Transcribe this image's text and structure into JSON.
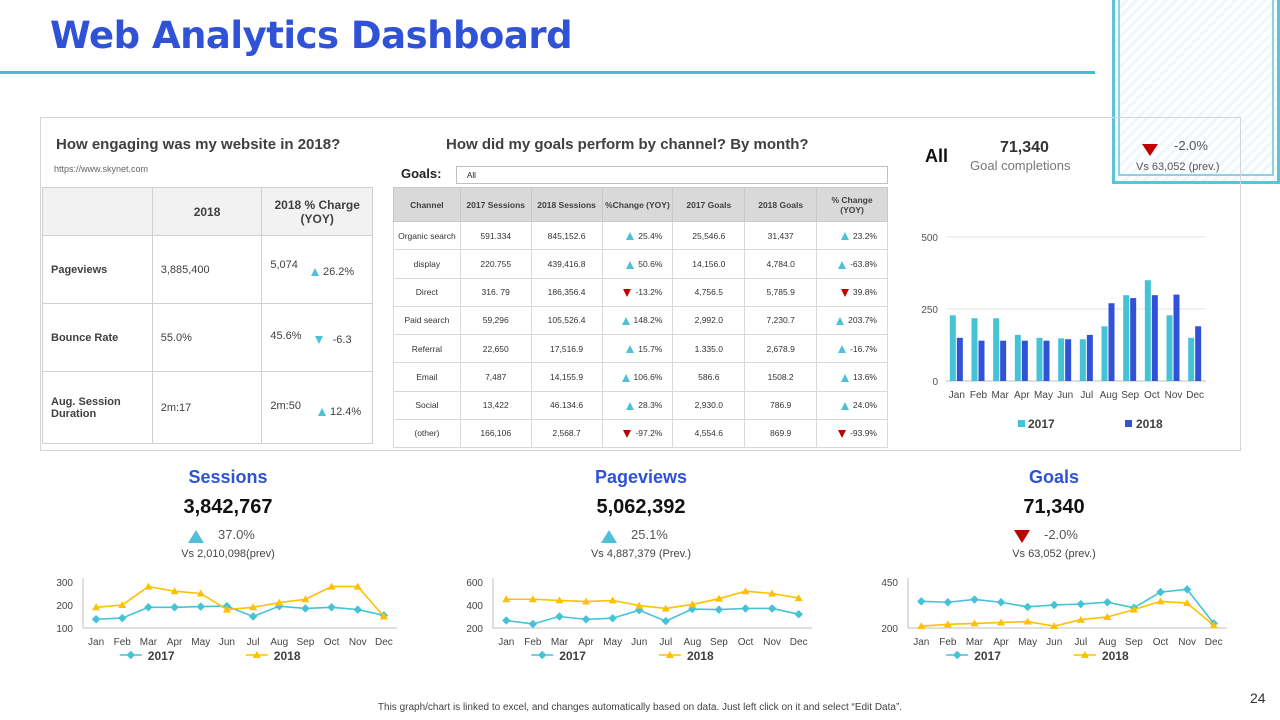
{
  "page": {
    "title": "Web Analytics Dashboard",
    "page_number": "24",
    "footer": "This graph/chart is linked to excel, and changes automatically based on data. Just left click on it and select “Edit Data”."
  },
  "engagement": {
    "heading": "How engaging was my website in 2018?",
    "url": "https://www.skynet.com",
    "col_2018": "2018",
    "col_change": "2018 % Charge (YOY)",
    "rows": [
      {
        "label": "Pageviews",
        "value": "3,885,400",
        "value2": "5,074",
        "change": "26.2%",
        "dir": "up"
      },
      {
        "label": "Bounce Rate",
        "value": "55.0%",
        "value2": "45.6%",
        "change": "-6.3",
        "dir": "down"
      },
      {
        "label": "Aug. Session Duration",
        "value": "2m:17",
        "value2": "2m:50",
        "change": "12.4%",
        "dir": "up"
      }
    ]
  },
  "channels": {
    "heading": "How did my goals perform by channel? By month?",
    "goals_label": "Goals:",
    "goals_value": "All",
    "headers": [
      "Channel",
      "2017 Sessions",
      "2018 Sessions",
      "%Change (YOY)",
      "2017 Goals",
      "2018 Goals",
      "% Change (YOY)"
    ],
    "rows": [
      {
        "channel": "Organic search",
        "s2017": "591.334",
        "s2018": "845,152.6",
        "sc": "25.4%",
        "sd": "up",
        "g2017": "25,546.6",
        "g2018": "31,437",
        "gc": "23.2%",
        "gd": "up"
      },
      {
        "channel": "display",
        "s2017": "220.755",
        "s2018": "439,416.8",
        "sc": "50.6%",
        "sd": "up",
        "g2017": "14,156.0",
        "g2018": "4,784.0",
        "gc": "-63.8%",
        "gd": "up"
      },
      {
        "channel": "Direct",
        "s2017": "316. 79",
        "s2018": "186,356.4",
        "sc": "-13.2%",
        "sd": "down",
        "g2017": "4,756.5",
        "g2018": "5,785.9",
        "gc": "39.8%",
        "gd": "down"
      },
      {
        "channel": "Paid search",
        "s2017": "59,296",
        "s2018": "105,526.4",
        "sc": "148.2%",
        "sd": "up",
        "g2017": "2,992.0",
        "g2018": "7,230.7",
        "gc": "203.7%",
        "gd": "up"
      },
      {
        "channel": "Referral",
        "s2017": "22,650",
        "s2018": "17,516.9",
        "sc": "15.7%",
        "sd": "up",
        "g2017": "1.335.0",
        "g2018": "2,678.9",
        "gc": "-16.7%",
        "gd": "up"
      },
      {
        "channel": "Email",
        "s2017": "7,487",
        "s2018": "14,155.9",
        "sc": "106.6%",
        "sd": "up",
        "g2017": "586.6",
        "g2018": "1508.2",
        "gc": "13.6%",
        "gd": "up"
      },
      {
        "channel": "Social",
        "s2017": "13,422",
        "s2018": "46.134.6",
        "sc": "28.3%",
        "sd": "up",
        "g2017": "2,930.0",
        "g2018": "786.9",
        "gc": "24.0%",
        "gd": "up"
      },
      {
        "channel": "(other)",
        "s2017": "166,106",
        "s2018": "2,568.7",
        "sc": "-97.2%",
        "sd": "down",
        "g2017": "4,554.6",
        "g2018": "869.9",
        "gc": "-93.9%",
        "gd": "down"
      }
    ]
  },
  "summary": {
    "all_label": "All",
    "value": "71,340",
    "sub": "Goal completions",
    "change": "-2.0%",
    "vs": "Vs 63,052 (prev.)"
  },
  "kpis": [
    {
      "title": "Sessions",
      "value": "3,842,767",
      "change": "37.0%",
      "dir": "up",
      "vs": "Vs 2,010,098(prev)"
    },
    {
      "title": "Pageviews",
      "value": "5,062,392",
      "change": "25.1%",
      "dir": "up",
      "vs": "Vs 4,887,379 (Prev.)"
    },
    {
      "title": "Goals",
      "value": "71,340",
      "change": "-2.0%",
      "dir": "down",
      "vs": "Vs 63,052 (prev.)"
    }
  ],
  "colors": {
    "series_2017_bar": "#45c3d6",
    "series_2018_bar": "#2f52d6",
    "series_2017_line": "#45c3d6",
    "series_2018_line": "#ffc000",
    "up": "#4ec0d8",
    "down": "#c00000"
  },
  "chart_data": [
    {
      "id": "goals_bar",
      "type": "bar",
      "categories": [
        "Jan",
        "Feb",
        "Mar",
        "Apr",
        "May",
        "Jun",
        "Jul",
        "Aug",
        "Sep",
        "Oct",
        "Nov",
        "Dec"
      ],
      "ylim": [
        0,
        500
      ],
      "yticks": [
        "0",
        "250",
        "500"
      ],
      "series": [
        {
          "name": "2017",
          "values": [
            228,
            218,
            218,
            160,
            150,
            148,
            145,
            190,
            298,
            350,
            228,
            150
          ]
        },
        {
          "name": "2018",
          "values": [
            150,
            140,
            140,
            140,
            140,
            145,
            160,
            270,
            288,
            298,
            300,
            190
          ]
        }
      ]
    },
    {
      "id": "sessions_line",
      "type": "line",
      "categories": [
        "Jan",
        "Feb",
        "Mar",
        "Apr",
        "May",
        "Jun",
        "Jul",
        "Aug",
        "Sep",
        "Oct",
        "Nov",
        "Dec"
      ],
      "ylim": [
        100,
        300
      ],
      "yticks": [
        "100",
        "200",
        "300"
      ],
      "series": [
        {
          "name": "2017",
          "values": [
            138,
            143,
            190,
            190,
            193,
            195,
            150,
            195,
            185,
            190,
            180,
            155
          ]
        },
        {
          "name": "2018",
          "values": [
            190,
            200,
            280,
            260,
            250,
            180,
            190,
            210,
            225,
            280,
            280,
            150
          ]
        }
      ]
    },
    {
      "id": "pageviews_line",
      "type": "line",
      "categories": [
        "Jan",
        "Feb",
        "Mar",
        "Apr",
        "May",
        "Jun",
        "Jul",
        "Aug",
        "Sep",
        "Oct",
        "Nov",
        "Dec"
      ],
      "ylim": [
        200,
        600
      ],
      "yticks": [
        "200",
        "400",
        "600"
      ],
      "series": [
        {
          "name": "2017",
          "values": [
            265,
            235,
            300,
            275,
            285,
            355,
            260,
            365,
            360,
            370,
            370,
            320
          ]
        },
        {
          "name": "2018",
          "values": [
            450,
            450,
            440,
            430,
            440,
            395,
            370,
            405,
            455,
            520,
            500,
            460
          ]
        }
      ]
    },
    {
      "id": "goals_line",
      "type": "line",
      "categories": [
        "Jan",
        "Feb",
        "Mar",
        "Apr",
        "May",
        "Jun",
        "Jul",
        "Aug",
        "Sep",
        "Oct",
        "Nov",
        "Dec"
      ],
      "ylim": [
        200,
        450
      ],
      "yticks": [
        "200",
        "450"
      ],
      "series": [
        {
          "name": "2017",
          "values": [
            345,
            340,
            355,
            340,
            315,
            325,
            330,
            340,
            310,
            395,
            410,
            225
          ]
        },
        {
          "name": "2018",
          "values": [
            210,
            220,
            225,
            230,
            235,
            210,
            245,
            260,
            300,
            345,
            335,
            215
          ]
        }
      ]
    }
  ]
}
